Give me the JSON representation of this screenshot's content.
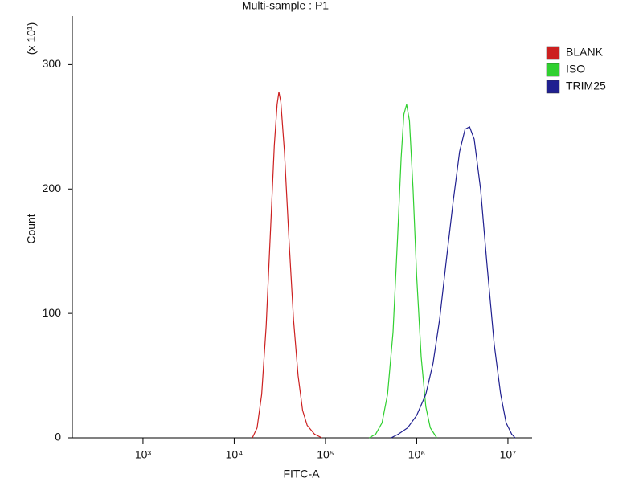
{
  "chart_data": {
    "type": "line",
    "title": "Multi-sample : P1",
    "x_label": "FITC-A",
    "y_label": "Count",
    "y_multiplier_label": "(x 10¹)",
    "xscale": "log",
    "xlim": [
      168,
      18400000
    ],
    "ylim": [
      0,
      339
    ],
    "xticks": [
      {
        "value": 1000,
        "label": "10³"
      },
      {
        "value": 10000,
        "label": "10⁴"
      },
      {
        "value": 100000,
        "label": "10⁵"
      },
      {
        "value": 1000000,
        "label": "10⁶"
      },
      {
        "value": 10000000,
        "label": "10⁷"
      }
    ],
    "yticks": [
      0,
      100,
      200,
      300
    ],
    "grid": false,
    "legend": "right",
    "series": [
      {
        "name": "BLANK",
        "color": "#cc2020",
        "x": [
          15800,
          17800,
          20000,
          22400,
          25100,
          27500,
          29500,
          30900,
          32400,
          35500,
          39800,
          44700,
          50100,
          56200,
          63100,
          75900,
          91200
        ],
        "values": [
          0,
          8,
          35,
          90,
          170,
          235,
          268,
          278,
          270,
          230,
          160,
          95,
          50,
          22,
          10,
          3,
          0
        ]
      },
      {
        "name": "ISO",
        "color": "#30d030",
        "x": [
          302000,
          355000,
          417000,
          479000,
          550000,
          617000,
          676000,
          724000,
          776000,
          832000,
          912000,
          1000000,
          1120000,
          1260000,
          1410000,
          1660000
        ],
        "values": [
          0,
          3,
          12,
          35,
          85,
          160,
          225,
          260,
          268,
          255,
          200,
          130,
          65,
          25,
          8,
          0
        ]
      },
      {
        "name": "TRIM25",
        "color": "#202090",
        "x": [
          525000,
          631000,
          794000,
          1000000,
          1260000,
          1510000,
          1780000,
          2090000,
          2510000,
          2950000,
          3390000,
          3800000,
          4270000,
          5010000,
          5890000,
          7080000,
          8320000,
          9550000,
          11000000,
          12000000
        ],
        "values": [
          0,
          3,
          8,
          18,
          35,
          60,
          95,
          140,
          190,
          230,
          248,
          250,
          240,
          200,
          140,
          75,
          35,
          12,
          3,
          0
        ]
      }
    ]
  }
}
